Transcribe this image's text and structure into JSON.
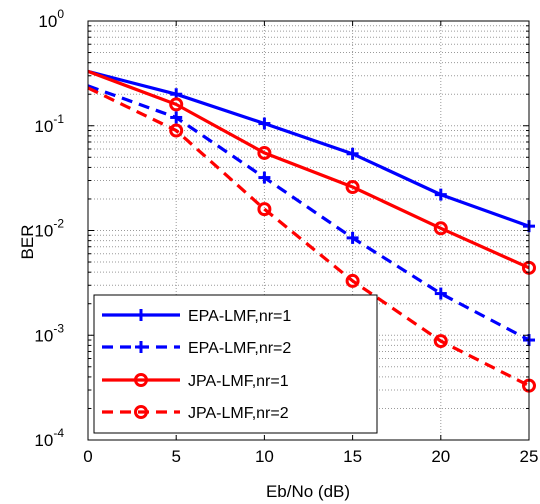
{
  "chart_data": {
    "type": "line",
    "xlabel": "Eb/No (dB)",
    "ylabel": "BER",
    "xlim": [
      0,
      25
    ],
    "ylim": [
      0.0001,
      1
    ],
    "yscale": "log",
    "grid": true,
    "legend_position": "bottom-left",
    "x_ticks": [
      "0",
      "5",
      "10",
      "15",
      "20",
      "25"
    ],
    "y_ticks": [
      {
        "base": "10",
        "exp": "0",
        "value": 1
      },
      {
        "base": "10",
        "exp": "-1",
        "value": 0.1
      },
      {
        "base": "10",
        "exp": "-2",
        "value": 0.01
      },
      {
        "base": "10",
        "exp": "-3",
        "value": 0.001
      },
      {
        "base": "10",
        "exp": "-4",
        "value": 0.0001
      }
    ],
    "x": [
      0,
      5,
      10,
      15,
      20,
      25
    ],
    "series": [
      {
        "name": "EPA-LMF,nr=1",
        "color": "#0000ff",
        "dash": "solid",
        "marker": "plus",
        "values": [
          0.33,
          0.2,
          0.105,
          0.054,
          0.022,
          0.011
        ]
      },
      {
        "name": "EPA-LMF,nr=2",
        "color": "#0000ff",
        "dash": "dashed",
        "marker": "plus",
        "values": [
          0.24,
          0.12,
          0.032,
          0.0085,
          0.0025,
          0.0009
        ]
      },
      {
        "name": "JPA-LMF,nr=1",
        "color": "#ff0000",
        "dash": "solid",
        "marker": "circle",
        "values": [
          0.33,
          0.16,
          0.055,
          0.026,
          0.0105,
          0.0044
        ]
      },
      {
        "name": "JPA-LMF,nr=2",
        "color": "#ff0000",
        "dash": "dashed",
        "marker": "circle",
        "values": [
          0.23,
          0.09,
          0.016,
          0.0033,
          0.00088,
          0.00033
        ]
      }
    ]
  }
}
